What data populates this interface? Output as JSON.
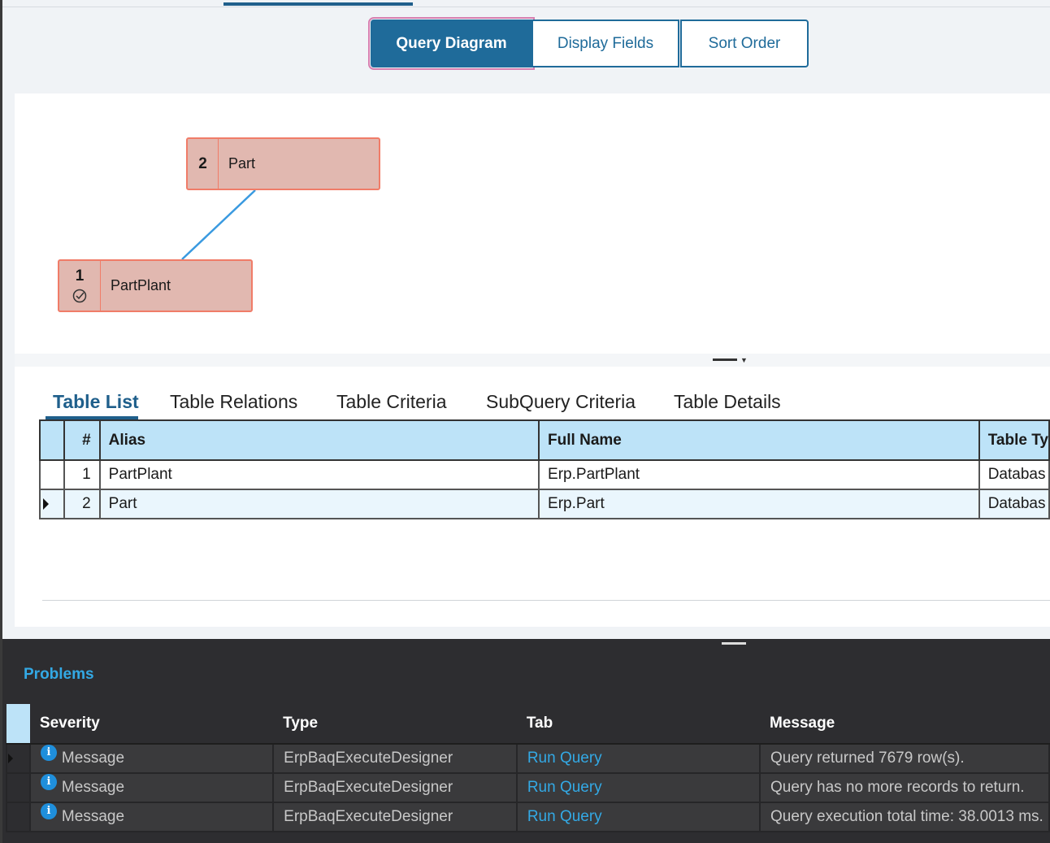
{
  "segments": [
    "Query Diagram",
    "Display Fields",
    "Sort Order"
  ],
  "diagram": {
    "nodes": [
      {
        "num": "2",
        "label": "Part"
      },
      {
        "num": "1",
        "label": "PartPlant"
      }
    ]
  },
  "tabs": [
    "Table List",
    "Table Relations",
    "Table Criteria",
    "SubQuery Criteria",
    "Table Details"
  ],
  "table_list": {
    "columns": [
      "#",
      "Alias",
      "Full Name",
      "Table Ty"
    ],
    "rows": [
      {
        "num": "1",
        "alias": "PartPlant",
        "full_name": "Erp.PartPlant",
        "table_type": "Databas"
      },
      {
        "num": "2",
        "alias": "Part",
        "full_name": "Erp.Part",
        "table_type": "Databas"
      }
    ]
  },
  "problems": {
    "title": "Problems",
    "columns": [
      "Severity",
      "Type",
      "Tab",
      "Message"
    ],
    "rows": [
      {
        "severity": "Message",
        "type": "ErpBaqExecuteDesigner",
        "tab": "Run Query",
        "message": "Query returned 7679 row(s)."
      },
      {
        "severity": "Message",
        "type": "ErpBaqExecuteDesigner",
        "tab": "Run Query",
        "message": "Query has no more records to return."
      },
      {
        "severity": "Message",
        "type": "ErpBaqExecuteDesigner",
        "tab": "Run Query",
        "message": "Query execution total time: 38.0013 ms."
      }
    ]
  },
  "colors": {
    "accent": "#1f6b9a",
    "node_fill": "#e1b8b0",
    "node_border": "#f07c68",
    "link": "#33a9e5"
  }
}
